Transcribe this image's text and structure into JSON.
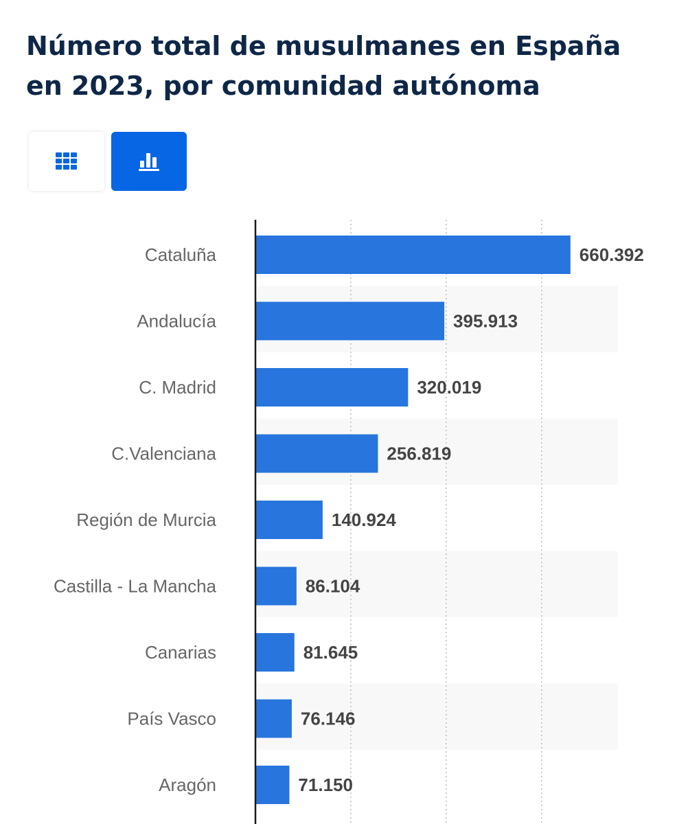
{
  "title": "Número total de musulmanes en España en 2023, por comunidad autónoma",
  "view_toggle": {
    "table_icon": "grid-table-icon",
    "chart_icon": "bar-chart-icon",
    "active": "chart",
    "accent_color": "#0666e3"
  },
  "chart_data": {
    "type": "bar",
    "orientation": "horizontal",
    "categories": [
      "Cataluña",
      "Andalucía",
      "C. Madrid",
      "C.Valenciana",
      "Región de Murcia",
      "Castilla - La Mancha",
      "Canarias",
      "País Vasco",
      "Aragón"
    ],
    "values": [
      660392,
      395913,
      320019,
      256819,
      140924,
      86104,
      81645,
      76146,
      71150
    ],
    "value_labels": [
      "660.392",
      "395.913",
      "320.019",
      "256.819",
      "140.924",
      "86.104",
      "81.645",
      "76.146",
      "71.150"
    ],
    "xlim": [
      0,
      760000
    ],
    "grid": true,
    "bar_color": "#2775dd",
    "band_color": "#f8f8f8"
  }
}
